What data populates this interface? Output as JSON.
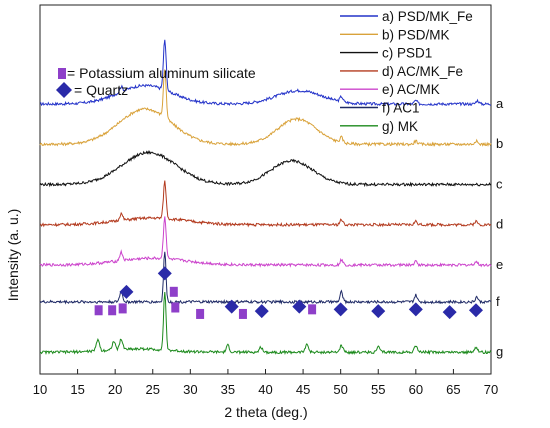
{
  "chart_data": {
    "type": "line",
    "xlabel": "2 theta (deg.)",
    "ylabel": "Intensity (a. u.)",
    "xlim": [
      10,
      70
    ],
    "x_ticks": [
      10,
      15,
      20,
      25,
      30,
      35,
      40,
      45,
      50,
      55,
      60,
      65,
      70
    ],
    "legend_position": "top-right",
    "series": [
      {
        "name": "a) PSD/MK_Fe",
        "tag": "a",
        "color": "#2433c9",
        "offset": 8.0,
        "base": 0.05,
        "humps": [
          [
            24,
            3.5,
            0.55
          ],
          [
            44.5,
            3.0,
            0.4
          ]
        ],
        "peaks": [
          [
            26.6,
            0.18,
            1.5
          ],
          [
            20.8,
            0.2,
            0.15
          ],
          [
            50.1,
            0.2,
            0.15
          ],
          [
            60.0,
            0.2,
            0.1
          ],
          [
            68.2,
            0.2,
            0.1
          ]
        ]
      },
      {
        "name": "b) PSD/MK",
        "tag": "b",
        "color": "#d9a23a",
        "offset": 6.8,
        "base": 0.05,
        "humps": [
          [
            24,
            3.5,
            1.05
          ],
          [
            44.2,
            2.6,
            0.75
          ]
        ],
        "peaks": [
          [
            26.6,
            0.18,
            1.45
          ],
          [
            50.1,
            0.2,
            0.15
          ],
          [
            60.0,
            0.2,
            0.1
          ],
          [
            68.0,
            0.2,
            0.1
          ]
        ]
      },
      {
        "name": "c) PSD1",
        "tag": "c",
        "color": "#111111",
        "offset": 5.6,
        "base": 0.05,
        "humps": [
          [
            24.5,
            3.6,
            0.95
          ],
          [
            43.5,
            2.8,
            0.7
          ]
        ],
        "peaks": []
      },
      {
        "name": "d) AC/MK_Fe",
        "tag": "d",
        "color": "#b33a1e",
        "offset": 4.4,
        "base": 0.05,
        "humps": [
          [
            25,
            4.5,
            0.2
          ]
        ],
        "peaks": [
          [
            26.6,
            0.18,
            1.1
          ],
          [
            20.8,
            0.2,
            0.2
          ],
          [
            50.1,
            0.2,
            0.15
          ],
          [
            60.0,
            0.2,
            0.1
          ],
          [
            68.0,
            0.2,
            0.1
          ]
        ]
      },
      {
        "name": "e) AC/MK",
        "tag": "e",
        "color": "#cc44cc",
        "offset": 3.2,
        "base": 0.05,
        "humps": [
          [
            25,
            4.5,
            0.2
          ]
        ],
        "peaks": [
          [
            26.6,
            0.18,
            1.25
          ],
          [
            20.8,
            0.2,
            0.25
          ],
          [
            50.1,
            0.2,
            0.15
          ],
          [
            60.0,
            0.2,
            0.1
          ],
          [
            68.0,
            0.2,
            0.1
          ]
        ]
      },
      {
        "name": "f) AC1",
        "tag": "f",
        "color": "#1f2a66",
        "offset": 2.1,
        "base": 0.05,
        "humps": [],
        "peaks": [
          [
            26.6,
            0.16,
            1.5
          ],
          [
            20.8,
            0.2,
            0.3
          ],
          [
            50.1,
            0.18,
            0.3
          ],
          [
            60.0,
            0.18,
            0.2
          ],
          [
            68.1,
            0.18,
            0.15
          ]
        ]
      },
      {
        "name": "g) MK",
        "tag": "g",
        "color": "#1c8a1c",
        "offset": 0.6,
        "base": 0.05,
        "humps": [
          [
            23,
            4.0,
            0.1
          ]
        ],
        "peaks": [
          [
            26.6,
            0.16,
            1.75
          ],
          [
            17.7,
            0.2,
            0.35
          ],
          [
            19.8,
            0.2,
            0.25
          ],
          [
            20.8,
            0.2,
            0.3
          ],
          [
            35.0,
            0.2,
            0.2
          ],
          [
            39.4,
            0.2,
            0.15
          ],
          [
            45.5,
            0.2,
            0.25
          ],
          [
            50.1,
            0.2,
            0.2
          ],
          [
            55.0,
            0.2,
            0.15
          ],
          [
            60.0,
            0.2,
            0.2
          ],
          [
            68.0,
            0.2,
            0.15
          ]
        ]
      }
    ],
    "marker_legend": [
      {
        "shape": "square",
        "label": "= Potassium aluminum silicate",
        "color": "#8e3fc9"
      },
      {
        "shape": "diamond",
        "label": "= Quartz",
        "color": "#2a2aa8"
      }
    ],
    "markers": [
      {
        "shape": "square",
        "x": 17.8,
        "level": 1
      },
      {
        "shape": "square",
        "x": 19.6,
        "level": 1
      },
      {
        "shape": "square",
        "x": 21.0,
        "level": 1.1
      },
      {
        "shape": "diamond",
        "x": 21.5,
        "level": 2
      },
      {
        "shape": "diamond",
        "x": 26.6,
        "level": 3
      },
      {
        "shape": "square",
        "x": 27.8,
        "level": 2
      },
      {
        "shape": "square",
        "x": 28.0,
        "level": 1.15
      },
      {
        "shape": "square",
        "x": 31.3,
        "level": 0.8
      },
      {
        "shape": "diamond",
        "x": 35.5,
        "level": 1.2
      },
      {
        "shape": "square",
        "x": 37.0,
        "level": 0.8
      },
      {
        "shape": "diamond",
        "x": 39.5,
        "level": 0.95
      },
      {
        "shape": "diamond",
        "x": 44.5,
        "level": 1.2
      },
      {
        "shape": "square",
        "x": 46.2,
        "level": 1.05
      },
      {
        "shape": "diamond",
        "x": 50.0,
        "level": 1.05
      },
      {
        "shape": "diamond",
        "x": 55.0,
        "level": 0.95
      },
      {
        "shape": "diamond",
        "x": 60.0,
        "level": 1.05
      },
      {
        "shape": "diamond",
        "x": 64.5,
        "level": 0.9
      },
      {
        "shape": "diamond",
        "x": 68.0,
        "level": 1.0
      }
    ]
  }
}
